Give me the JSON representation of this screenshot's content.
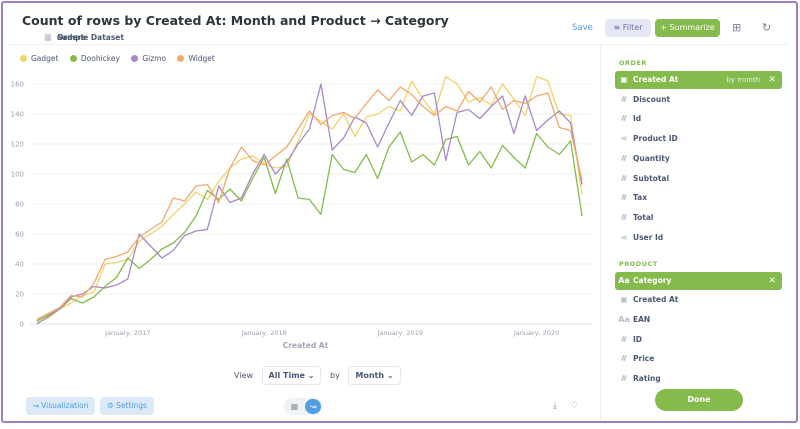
{
  "header": {
    "title": "Count of rows by Created At: Month and Product → Category",
    "breadcrumbs": [
      "Sample Dataset",
      "Orders"
    ],
    "save_label": "Save",
    "filter_label": "Filter",
    "summarize_label": "Summarize"
  },
  "colors": {
    "Gadget": "#f2d36b",
    "Doohickey": "#84bb4c",
    "Gizmo": "#a989c5",
    "Widget": "#f2a86f",
    "accent": "#84bb4c",
    "brand": "#509ee3"
  },
  "chart_data": {
    "type": "line",
    "title": "",
    "xlabel": "Created At",
    "ylabel": "",
    "ylim": [
      0,
      160
    ],
    "y_ticks": [
      0,
      20,
      40,
      60,
      80,
      100,
      120,
      140,
      160
    ],
    "x_tick_labels": [
      "January, 2017",
      "January, 2018",
      "January, 2019",
      "January, 2020"
    ],
    "x_tick_indices": [
      8,
      20,
      32,
      44
    ],
    "legend": "top-left",
    "series": [
      {
        "name": "Gadget",
        "values": [
          1,
          4,
          10,
          14,
          19,
          21,
          40,
          41,
          43,
          55,
          60,
          65,
          73,
          80,
          88,
          83,
          95,
          104,
          110,
          112,
          107,
          104,
          105,
          122,
          140,
          135,
          130,
          140,
          125,
          138,
          140,
          145,
          142,
          162,
          150,
          140,
          165,
          160,
          148,
          151,
          146,
          160,
          150,
          139,
          165,
          162,
          140,
          139,
          86
        ]
      },
      {
        "name": "Doohickey",
        "values": [
          2,
          6,
          10,
          17,
          14,
          18,
          25,
          31,
          44,
          37,
          43,
          50,
          54,
          61,
          72,
          89,
          83,
          90,
          82,
          97,
          111,
          87,
          110,
          84,
          83,
          73,
          113,
          103,
          101,
          113,
          97,
          118,
          128,
          108,
          113,
          106,
          123,
          125,
          106,
          115,
          104,
          119,
          111,
          104,
          127,
          118,
          113,
          122,
          72
        ]
      },
      {
        "name": "Gizmo",
        "values": [
          0,
          5,
          10,
          18,
          20,
          25,
          24,
          26,
          30,
          60,
          52,
          44,
          49,
          59,
          62,
          63,
          92,
          81,
          84,
          100,
          113,
          100,
          108,
          120,
          130,
          160,
          116,
          124,
          138,
          134,
          118,
          134,
          149,
          139,
          152,
          154,
          109,
          141,
          143,
          137,
          145,
          152,
          127,
          152,
          129,
          136,
          142,
          134,
          93
        ]
      },
      {
        "name": "Widget",
        "values": [
          3,
          7,
          11,
          19,
          18,
          27,
          43,
          45,
          48,
          58,
          63,
          68,
          84,
          82,
          92,
          93,
          81,
          104,
          118,
          109,
          106,
          112,
          118,
          130,
          142,
          133,
          139,
          141,
          137,
          147,
          156,
          149,
          158,
          153,
          145,
          139,
          145,
          142,
          155,
          148,
          158,
          143,
          149,
          147,
          152,
          154,
          131,
          129,
          96
        ]
      }
    ]
  },
  "viewbar": {
    "view_label": "View",
    "range": "All Time",
    "by_label": "by",
    "unit": "Month"
  },
  "footer": {
    "visualization_label": "Visualization",
    "settings_label": "Settings"
  },
  "sidebar": {
    "order_title": "ORDER",
    "order_items": [
      {
        "label": "Created At",
        "sub": "by month",
        "icon": "calendar-icon"
      },
      {
        "label": "Discount",
        "icon": "hash-icon"
      },
      {
        "label": "Id",
        "icon": "hash-icon"
      },
      {
        "label": "Product ID",
        "icon": "connections-icon"
      },
      {
        "label": "Quantity",
        "icon": "hash-icon"
      },
      {
        "label": "Subtotal",
        "icon": "hash-icon"
      },
      {
        "label": "Tax",
        "icon": "hash-icon"
      },
      {
        "label": "Total",
        "icon": "hash-icon"
      },
      {
        "label": "User Id",
        "icon": "connections-icon"
      }
    ],
    "product_title": "PRODUCT",
    "product_items": [
      {
        "label": "Category",
        "icon": "string-icon"
      },
      {
        "label": "Created At",
        "icon": "calendar-icon"
      },
      {
        "label": "EAN",
        "icon": "string-icon"
      },
      {
        "label": "ID",
        "icon": "hash-icon"
      },
      {
        "label": "Price",
        "icon": "hash-icon"
      },
      {
        "label": "Rating",
        "icon": "hash-icon"
      }
    ],
    "done_label": "Done"
  }
}
